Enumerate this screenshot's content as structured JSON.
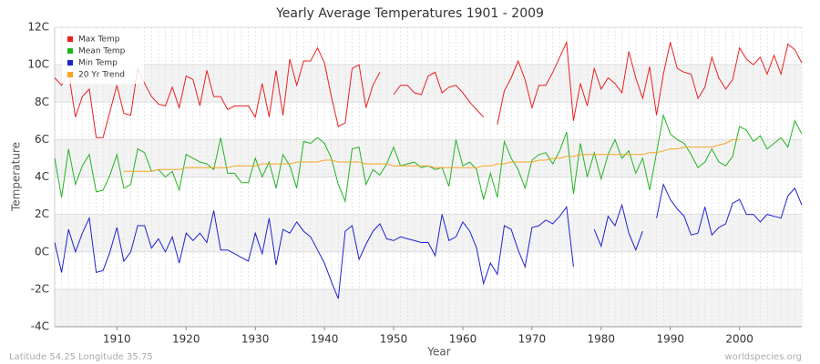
{
  "chart_data": {
    "type": "line",
    "title": "Yearly Average Temperatures 1901 - 2009",
    "xlabel": "Year",
    "ylabel": "Temperature",
    "footer_left": "Latitude 54.25 Longitude 35.75",
    "footer_right": "worldspecies.org",
    "legend": "top-left",
    "grid": true,
    "xlim": [
      1901,
      2009
    ],
    "xticks": [
      1910,
      1920,
      1930,
      1940,
      1950,
      1960,
      1970,
      1980,
      1990,
      2000
    ],
    "ylim": [
      -4,
      12
    ],
    "yticks": [
      {
        "value": -4,
        "label": "-4C"
      },
      {
        "value": -2,
        "label": "-2C"
      },
      {
        "value": 0,
        "label": "0C"
      },
      {
        "value": 2,
        "label": "2C"
      },
      {
        "value": 4,
        "label": "4C"
      },
      {
        "value": 6,
        "label": "6C"
      },
      {
        "value": 8,
        "label": "8C"
      },
      {
        "value": 10,
        "label": "10C"
      },
      {
        "value": 12,
        "label": "12C"
      }
    ],
    "x": [
      1901,
      1902,
      1903,
      1904,
      1905,
      1906,
      1907,
      1908,
      1909,
      1910,
      1911,
      1912,
      1913,
      1914,
      1915,
      1916,
      1917,
      1918,
      1919,
      1920,
      1921,
      1922,
      1923,
      1924,
      1925,
      1926,
      1927,
      1928,
      1929,
      1930,
      1931,
      1932,
      1933,
      1934,
      1935,
      1936,
      1937,
      1938,
      1939,
      1940,
      1941,
      1942,
      1943,
      1944,
      1945,
      1946,
      1947,
      1948,
      1949,
      1950,
      1951,
      1952,
      1953,
      1954,
      1955,
      1956,
      1957,
      1958,
      1959,
      1960,
      1961,
      1962,
      1963,
      1964,
      1965,
      1966,
      1967,
      1968,
      1969,
      1970,
      1971,
      1972,
      1973,
      1974,
      1975,
      1976,
      1977,
      1978,
      1979,
      1980,
      1981,
      1982,
      1983,
      1984,
      1985,
      1986,
      1987,
      1988,
      1989,
      1990,
      1991,
      1992,
      1993,
      1994,
      1995,
      1996,
      1997,
      1998,
      1999,
      2000,
      2001,
      2002,
      2003,
      2004,
      2005,
      2006,
      2007,
      2008,
      2009
    ],
    "series": [
      {
        "name": "Max Temp",
        "color": "#e8201f",
        "values": [
          9.3,
          8.9,
          9.6,
          7.2,
          8.3,
          8.7,
          6.1,
          6.1,
          7.5,
          8.9,
          7.4,
          7.3,
          9.8,
          9.0,
          8.3,
          7.9,
          7.8,
          8.8,
          7.7,
          9.4,
          9.2,
          7.8,
          9.7,
          8.3,
          8.3,
          7.6,
          7.8,
          7.8,
          7.8,
          7.2,
          9.0,
          7.2,
          9.7,
          7.3,
          10.3,
          8.9,
          10.2,
          10.2,
          10.9,
          10.1,
          8.3,
          6.7,
          6.9,
          9.8,
          10.0,
          7.7,
          8.9,
          9.6,
          null,
          8.4,
          8.9,
          8.9,
          8.5,
          8.4,
          9.4,
          9.6,
          8.5,
          8.8,
          8.9,
          8.5,
          8.0,
          7.6,
          7.2,
          null,
          6.8,
          8.6,
          9.3,
          10.2,
          9.2,
          7.7,
          8.9,
          8.9,
          9.6,
          10.4,
          11.2,
          7.0,
          9.0,
          7.8,
          9.8,
          8.7,
          9.3,
          9.0,
          8.5,
          10.7,
          9.3,
          8.2,
          9.9,
          7.3,
          9.5,
          11.2,
          9.8,
          9.6,
          9.5,
          8.2,
          8.8,
          10.4,
          9.3,
          8.7,
          9.2,
          10.9,
          10.3,
          10.0,
          10.4,
          9.5,
          10.5,
          9.5,
          11.1,
          10.8,
          10.1
        ]
      },
      {
        "name": "Mean Temp",
        "color": "#22b422",
        "values": [
          5.0,
          2.9,
          5.5,
          3.6,
          4.6,
          5.2,
          3.2,
          3.3,
          4.1,
          5.2,
          3.4,
          3.6,
          5.5,
          5.3,
          4.3,
          4.4,
          4.0,
          4.3,
          3.3,
          5.2,
          5.0,
          4.8,
          4.7,
          4.4,
          6.1,
          4.2,
          4.2,
          3.7,
          3.7,
          5.0,
          4.0,
          4.8,
          3.4,
          5.2,
          4.6,
          3.4,
          5.9,
          5.8,
          6.1,
          5.8,
          5.0,
          3.6,
          2.7,
          5.5,
          5.6,
          3.6,
          4.4,
          4.1,
          4.7,
          5.6,
          4.6,
          4.7,
          4.8,
          4.5,
          4.6,
          4.4,
          4.5,
          3.5,
          6.0,
          4.6,
          4.8,
          4.4,
          2.8,
          4.2,
          2.9,
          5.9,
          5.0,
          4.4,
          3.4,
          4.9,
          5.2,
          5.3,
          4.7,
          5.4,
          6.4,
          3.1,
          5.8,
          4.0,
          5.3,
          3.9,
          5.2,
          6.0,
          5.0,
          5.4,
          4.2,
          5.0,
          3.3,
          5.3,
          7.3,
          6.3,
          6.0,
          5.8,
          5.2,
          4.5,
          4.8,
          5.5,
          4.8,
          4.6,
          5.1,
          6.7,
          6.5,
          5.9,
          6.2,
          5.5,
          5.8,
          6.1,
          5.6,
          7.0,
          6.3
        ]
      },
      {
        "name": "Min Temp",
        "color": "#1d22d0",
        "values": [
          0.5,
          -1.1,
          1.2,
          0.0,
          1.0,
          1.8,
          -1.1,
          -1.0,
          0.0,
          1.3,
          -0.5,
          0.0,
          1.4,
          1.4,
          0.2,
          0.7,
          0.0,
          0.8,
          -0.6,
          1.0,
          0.6,
          1.0,
          0.5,
          2.2,
          0.1,
          0.1,
          -0.1,
          -0.3,
          -0.5,
          1.0,
          -0.1,
          1.8,
          -0.7,
          1.2,
          1.0,
          1.6,
          1.1,
          0.8,
          0.1,
          -0.6,
          -1.6,
          -2.5,
          1.1,
          1.4,
          -0.4,
          0.4,
          1.1,
          1.5,
          0.7,
          0.6,
          0.8,
          0.7,
          0.6,
          0.5,
          0.5,
          -0.2,
          2.0,
          0.6,
          0.8,
          1.6,
          1.1,
          0.2,
          -1.7,
          -0.6,
          -1.2,
          1.4,
          1.2,
          0.1,
          -0.8,
          1.3,
          1.4,
          1.7,
          1.5,
          1.9,
          2.4,
          -0.8,
          null,
          null,
          1.2,
          0.3,
          1.9,
          1.4,
          2.5,
          1.0,
          0.1,
          1.1,
          null,
          1.8,
          3.6,
          2.8,
          2.3,
          1.9,
          0.9,
          1.0,
          2.4,
          0.9,
          1.3,
          1.5,
          2.6,
          2.8,
          2.0,
          2.0,
          1.6,
          2.0,
          1.9,
          1.8,
          3.0,
          3.4,
          2.5
        ]
      },
      {
        "name": "20 Yr Trend",
        "color": "#f5a623",
        "values": [
          null,
          null,
          null,
          null,
          null,
          null,
          null,
          null,
          null,
          null,
          4.3,
          4.3,
          4.3,
          4.3,
          4.3,
          4.4,
          4.4,
          4.4,
          4.4,
          4.5,
          4.5,
          4.5,
          4.5,
          4.5,
          4.5,
          4.5,
          4.6,
          4.6,
          4.6,
          4.6,
          4.7,
          4.7,
          4.7,
          4.7,
          4.7,
          4.8,
          4.8,
          4.8,
          4.8,
          4.9,
          4.9,
          4.8,
          4.8,
          4.8,
          4.8,
          4.7,
          4.7,
          4.7,
          4.7,
          4.6,
          4.6,
          4.6,
          4.6,
          4.6,
          4.6,
          4.5,
          4.5,
          4.5,
          4.5,
          4.5,
          4.5,
          4.5,
          4.6,
          4.6,
          4.7,
          4.7,
          4.8,
          4.8,
          4.8,
          4.8,
          4.9,
          4.9,
          5.0,
          5.0,
          5.1,
          5.1,
          5.2,
          5.2,
          5.2,
          5.2,
          5.2,
          5.2,
          5.2,
          5.2,
          5.2,
          5.2,
          5.3,
          5.3,
          5.4,
          5.5,
          5.5,
          5.6,
          5.6,
          5.6,
          5.6,
          5.6,
          5.7,
          5.8,
          6.0,
          6.0,
          null,
          null,
          null,
          null,
          null,
          null,
          null,
          null,
          null
        ]
      }
    ]
  }
}
